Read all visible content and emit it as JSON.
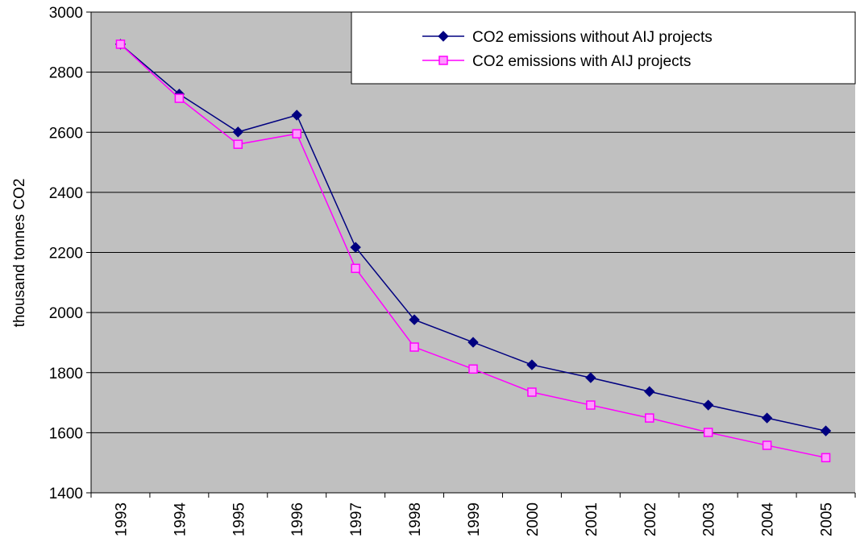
{
  "chart_data": {
    "type": "line",
    "y_label": "thousand tonnes CO2",
    "categories": [
      "1993",
      "1994",
      "1995",
      "1996",
      "1997",
      "1998",
      "1999",
      "2000",
      "2001",
      "2002",
      "2003",
      "2004",
      "2005"
    ],
    "series": [
      {
        "name": "CO2 emissions without AIJ projects",
        "color": "#000080",
        "marker": "diamond",
        "values": [
          2893,
          2727,
          2601,
          2657,
          2217,
          1976,
          1901,
          1826,
          1783,
          1737,
          1692,
          1649,
          1606
        ]
      },
      {
        "name": "CO2 emissions with AIJ projects",
        "color": "#ff00ff",
        "marker": "square",
        "values": [
          2893,
          2713,
          2560,
          2595,
          2147,
          1885,
          1812,
          1735,
          1692,
          1649,
          1601,
          1558,
          1517
        ]
      }
    ],
    "ylim": [
      1400,
      3000
    ],
    "yticks": [
      1400,
      1600,
      1800,
      2000,
      2200,
      2400,
      2600,
      2800,
      3000
    ],
    "grid": true,
    "legend": "top-right",
    "background": "#c0c0c0"
  }
}
